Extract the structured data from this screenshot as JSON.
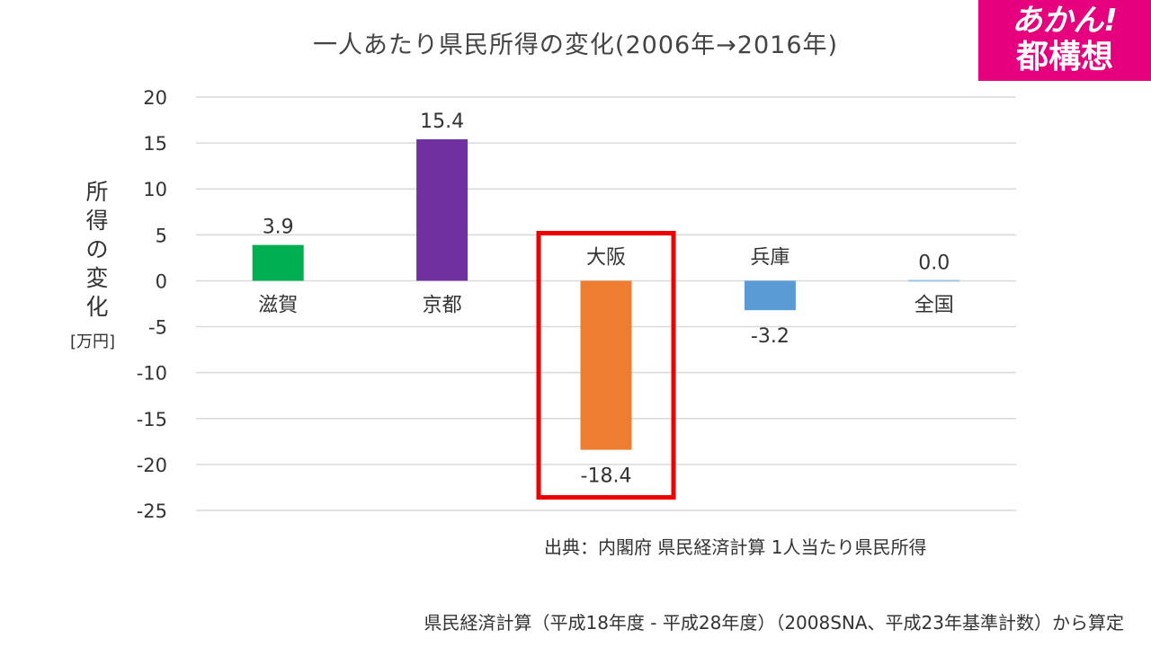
{
  "title": "一人あたり県民所得の変化(2006年→2016年)",
  "logo": {
    "line1": "あかん!",
    "line2": "都構想"
  },
  "ylabel_chars": [
    "所",
    "得",
    "の",
    "変",
    "化"
  ],
  "yunit": "[万円]",
  "source": "出典：内閣府 県民経済計算 1人当たり県民所得",
  "note": "県民経済計算（平成18年度 - 平成28年度）（2008SNA、平成23年基準計数）から算定",
  "colors": {
    "grid": "#d9d9d9",
    "highlight": "#ee0000",
    "logo_bg": "#e6007e"
  },
  "chart_data": {
    "type": "bar",
    "title": "一人あたり県民所得の変化(2006年→2016年)",
    "ylabel": "所得の変化 [万円]",
    "xlabel": "",
    "ylim": [
      -25,
      20
    ],
    "yticks": [
      "20",
      "15",
      "10",
      "5",
      "0",
      "-5",
      "-10",
      "-15",
      "-20",
      "-25"
    ],
    "grid": true,
    "categories": [
      "滋賀",
      "京都",
      "大阪",
      "兵庫",
      "全国"
    ],
    "values": [
      3.9,
      15.4,
      -18.4,
      -3.2,
      0.0
    ],
    "value_labels": [
      "3.9",
      "15.4",
      "-18.4",
      "-3.2",
      "0.0"
    ],
    "colors": [
      "#00b050",
      "#7030a0",
      "#ed7d31",
      "#5b9bd5",
      "#9dc3e6"
    ],
    "highlighted_category": "大阪"
  }
}
